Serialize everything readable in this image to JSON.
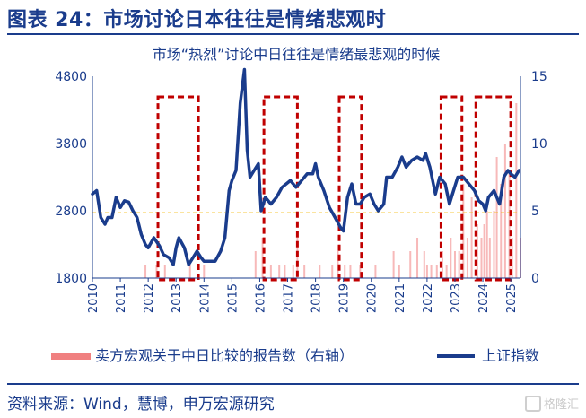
{
  "header": {
    "title": "图表 24：市场讨论日本往往是情绪悲观时"
  },
  "footer": {
    "source": "资料来源：Wind，慧博，申万宏源研究",
    "watermark": "格隆汇"
  },
  "colors": {
    "brand": "#1a3c8c",
    "index_line": "#1a3c8c",
    "bars": "#f08080",
    "highlight_box": "#c00000",
    "reference_line": "#f5b700"
  },
  "chart_data": {
    "type": "line",
    "title": "市场“热烈”讨论中日往往是情绪最悲观的时候",
    "x_ticks": [
      "2010",
      "2011",
      "2012",
      "2013",
      "2014",
      "2015",
      "2016",
      "2017",
      "2018",
      "2019",
      "2020",
      "2021",
      "2022",
      "2023",
      "2024",
      "2025"
    ],
    "y_left": {
      "min": 1800,
      "max": 4800,
      "ticks": [
        1800,
        2800,
        3800,
        4800
      ]
    },
    "y_right": {
      "min": 0,
      "max": 15,
      "ticks": [
        0,
        5,
        10,
        15
      ]
    },
    "reference_line": {
      "axis": "left",
      "value": 2770
    },
    "series": [
      {
        "name": "上证指数",
        "axis": "left",
        "points": [
          [
            2010.0,
            3050
          ],
          [
            2010.15,
            3100
          ],
          [
            2010.3,
            2700
          ],
          [
            2010.45,
            2600
          ],
          [
            2010.55,
            2700
          ],
          [
            2010.7,
            2700
          ],
          [
            2010.85,
            3000
          ],
          [
            2011.0,
            2850
          ],
          [
            2011.15,
            2950
          ],
          [
            2011.3,
            2930
          ],
          [
            2011.45,
            2800
          ],
          [
            2011.6,
            2700
          ],
          [
            2011.75,
            2450
          ],
          [
            2011.9,
            2300
          ],
          [
            2012.0,
            2250
          ],
          [
            2012.2,
            2400
          ],
          [
            2012.4,
            2280
          ],
          [
            2012.55,
            2150
          ],
          [
            2012.75,
            2100
          ],
          [
            2012.9,
            2000
          ],
          [
            2013.0,
            2250
          ],
          [
            2013.1,
            2400
          ],
          [
            2013.3,
            2250
          ],
          [
            2013.45,
            2000
          ],
          [
            2013.6,
            2100
          ],
          [
            2013.75,
            2200
          ],
          [
            2013.9,
            2100
          ],
          [
            2014.0,
            2050
          ],
          [
            2014.2,
            2050
          ],
          [
            2014.4,
            2050
          ],
          [
            2014.6,
            2200
          ],
          [
            2014.75,
            2400
          ],
          [
            2014.9,
            3100
          ],
          [
            2015.0,
            3250
          ],
          [
            2015.15,
            3400
          ],
          [
            2015.3,
            4400
          ],
          [
            2015.45,
            4900
          ],
          [
            2015.55,
            3700
          ],
          [
            2015.65,
            3300
          ],
          [
            2015.8,
            3400
          ],
          [
            2015.95,
            3500
          ],
          [
            2016.05,
            2800
          ],
          [
            2016.2,
            3000
          ],
          [
            2016.4,
            2900
          ],
          [
            2016.6,
            3000
          ],
          [
            2016.8,
            3150
          ],
          [
            2016.95,
            3200
          ],
          [
            2017.1,
            3250
          ],
          [
            2017.3,
            3150
          ],
          [
            2017.5,
            3250
          ],
          [
            2017.7,
            3350
          ],
          [
            2017.9,
            3350
          ],
          [
            2018.0,
            3500
          ],
          [
            2018.1,
            3300
          ],
          [
            2018.3,
            3100
          ],
          [
            2018.5,
            2850
          ],
          [
            2018.7,
            2700
          ],
          [
            2018.9,
            2550
          ],
          [
            2019.0,
            2500
          ],
          [
            2019.15,
            3000
          ],
          [
            2019.3,
            3200
          ],
          [
            2019.45,
            2900
          ],
          [
            2019.6,
            2900
          ],
          [
            2019.75,
            3000
          ],
          [
            2019.95,
            3050
          ],
          [
            2020.1,
            2900
          ],
          [
            2020.25,
            2800
          ],
          [
            2020.45,
            2900
          ],
          [
            2020.55,
            3300
          ],
          [
            2020.75,
            3300
          ],
          [
            2020.95,
            3450
          ],
          [
            2021.1,
            3600
          ],
          [
            2021.25,
            3450
          ],
          [
            2021.45,
            3550
          ],
          [
            2021.65,
            3600
          ],
          [
            2021.85,
            3550
          ],
          [
            2021.95,
            3650
          ],
          [
            2022.1,
            3450
          ],
          [
            2022.3,
            3050
          ],
          [
            2022.45,
            3300
          ],
          [
            2022.65,
            3200
          ],
          [
            2022.8,
            2900
          ],
          [
            2022.95,
            3100
          ],
          [
            2023.1,
            3300
          ],
          [
            2023.3,
            3300
          ],
          [
            2023.5,
            3200
          ],
          [
            2023.7,
            3100
          ],
          [
            2023.85,
            2950
          ],
          [
            2024.0,
            2900
          ],
          [
            2024.1,
            2800
          ],
          [
            2024.2,
            3000
          ],
          [
            2024.4,
            3100
          ],
          [
            2024.6,
            2900
          ],
          [
            2024.75,
            3300
          ],
          [
            2024.9,
            3400
          ],
          [
            2025.0,
            3350
          ],
          [
            2025.15,
            3300
          ],
          [
            2025.3,
            3400
          ]
        ]
      },
      {
        "name": "卖方宏观关于中日比较的报告数（右轴）",
        "axis": "right",
        "type": "bar",
        "points": [
          [
            2011.9,
            1
          ],
          [
            2012.3,
            1
          ],
          [
            2012.6,
            1
          ],
          [
            2013.5,
            1
          ],
          [
            2014.0,
            1
          ],
          [
            2015.85,
            2
          ],
          [
            2016.1,
            3
          ],
          [
            2016.4,
            1
          ],
          [
            2016.7,
            1
          ],
          [
            2016.9,
            1
          ],
          [
            2017.2,
            1
          ],
          [
            2017.35,
            3
          ],
          [
            2017.6,
            1
          ],
          [
            2018.15,
            1
          ],
          [
            2018.6,
            1
          ],
          [
            2018.8,
            2
          ],
          [
            2019.05,
            1
          ],
          [
            2019.25,
            1
          ],
          [
            2019.6,
            1
          ],
          [
            2020.15,
            1
          ],
          [
            2020.8,
            2
          ],
          [
            2021.0,
            1
          ],
          [
            2021.4,
            2
          ],
          [
            2021.65,
            3
          ],
          [
            2021.9,
            2
          ],
          [
            2022.0,
            1
          ],
          [
            2022.15,
            1
          ],
          [
            2022.35,
            1
          ],
          [
            2022.55,
            2
          ],
          [
            2022.7,
            1
          ],
          [
            2022.85,
            3
          ],
          [
            2023.0,
            2
          ],
          [
            2023.15,
            2
          ],
          [
            2023.3,
            7
          ],
          [
            2023.45,
            3
          ],
          [
            2023.6,
            6
          ],
          [
            2023.8,
            4
          ],
          [
            2023.95,
            3
          ],
          [
            2024.05,
            4
          ],
          [
            2024.15,
            5
          ],
          [
            2024.25,
            3
          ],
          [
            2024.4,
            5
          ],
          [
            2024.5,
            9
          ],
          [
            2024.65,
            7
          ],
          [
            2024.8,
            10
          ],
          [
            2024.95,
            8
          ],
          [
            2025.05,
            3
          ],
          [
            2025.2,
            13
          ],
          [
            2025.35,
            3
          ]
        ]
      }
    ],
    "highlight_ranges": [
      [
        2012.35,
        2013.8
      ],
      [
        2016.15,
        2017.35
      ],
      [
        2018.85,
        2019.65
      ],
      [
        2022.5,
        2023.25
      ],
      [
        2023.75,
        2025.0
      ]
    ],
    "legend": {
      "position": "bottom"
    }
  }
}
